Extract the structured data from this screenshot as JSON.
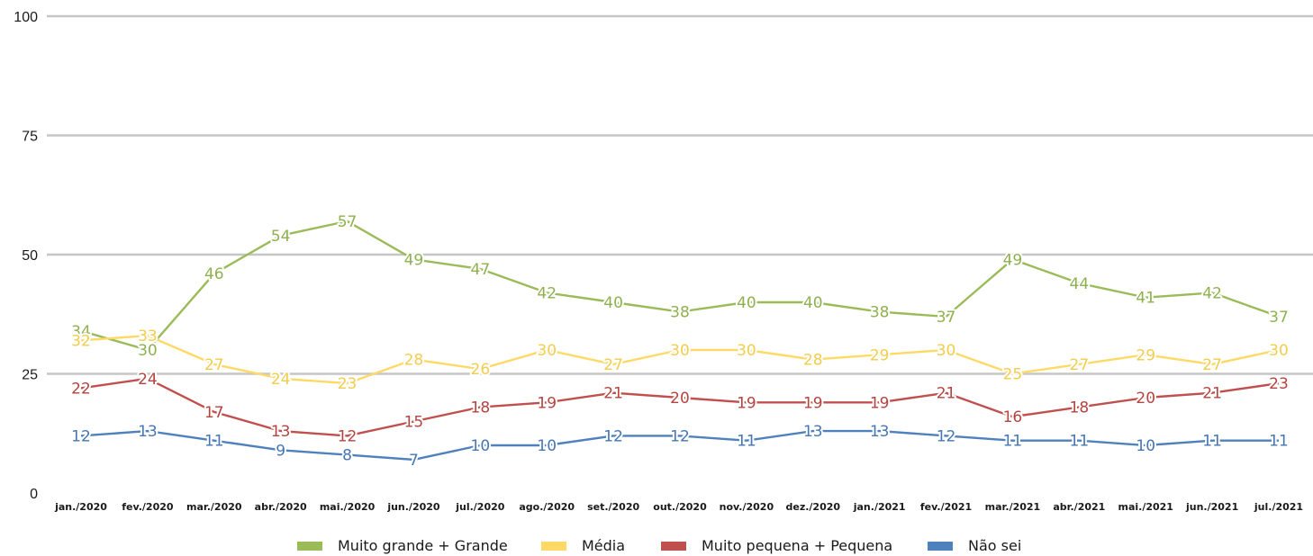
{
  "chart_data": {
    "type": "line",
    "title": "",
    "xlabel": "",
    "ylabel": "",
    "ylim": [
      0,
      100
    ],
    "yticks": [
      "0",
      "25",
      "50",
      "75",
      "100"
    ],
    "grid": true,
    "legend_position": "bottom",
    "categories": [
      "jan./2020",
      "fev./2020",
      "mar./2020",
      "abr./2020",
      "mai./2020",
      "jun./2020",
      "jul./2020",
      "ago./2020",
      "set./2020",
      "out./2020",
      "nov./2020",
      "dez./2020",
      "jan./2021",
      "fev./2021",
      "mar./2021",
      "abr./2021",
      "mai./2021",
      "jun./2021",
      "jul./2021"
    ],
    "series": [
      {
        "name": "Muito grande + Grande",
        "color": "#9bbb59",
        "label_color": "#8fb04f",
        "values": [
          34,
          30,
          46,
          54,
          57,
          49,
          47,
          42,
          40,
          38,
          40,
          40,
          38,
          37,
          49,
          44,
          41,
          42,
          37
        ]
      },
      {
        "name": "Média",
        "color": "#ffd966",
        "label_color": "#f2cc4d",
        "values": [
          32,
          33,
          27,
          24,
          23,
          28,
          26,
          30,
          27,
          30,
          30,
          28,
          29,
          30,
          25,
          27,
          29,
          27,
          30
        ]
      },
      {
        "name": "Muito pequena + Pequena",
        "color": "#c0504d",
        "label_color": "#b4443f",
        "values": [
          22,
          24,
          17,
          13,
          12,
          15,
          18,
          19,
          21,
          20,
          19,
          19,
          19,
          21,
          16,
          18,
          20,
          21,
          23
        ]
      },
      {
        "name": "Não sei",
        "color": "#4f81bd",
        "label_color": "#4676b3",
        "values": [
          12,
          13,
          11,
          9,
          8,
          7,
          10,
          10,
          12,
          12,
          11,
          13,
          13,
          12,
          11,
          11,
          10,
          11,
          11
        ]
      }
    ]
  }
}
